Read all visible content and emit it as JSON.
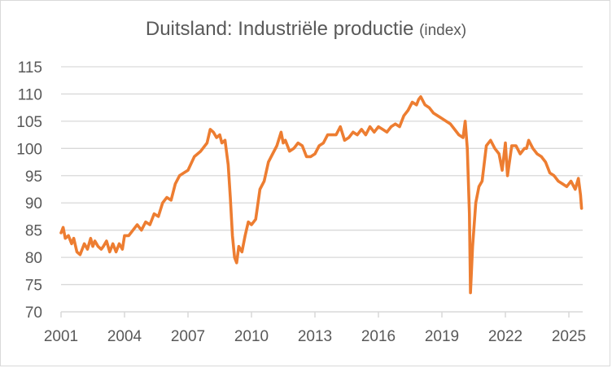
{
  "chart_data": {
    "type": "line",
    "title": "Duitsland: Industriële productie",
    "title_suffix": "(index)",
    "xlabel": "",
    "ylabel": "",
    "ylim": [
      70,
      115
    ],
    "xlim": [
      2001,
      2025.7
    ],
    "grid": true,
    "legend": "none",
    "y_ticks": [
      "70",
      "75",
      "80",
      "85",
      "90",
      "95",
      "100",
      "105",
      "110",
      "115"
    ],
    "x_ticks": [
      "2001",
      "2004",
      "2007",
      "2010",
      "2013",
      "2016",
      "2019",
      "2022",
      "2025"
    ],
    "line_color": "#ED7D31",
    "series": [
      {
        "name": "Industriële productie",
        "x": [
          2001.0,
          2001.1,
          2001.2,
          2001.35,
          2001.5,
          2001.6,
          2001.75,
          2001.9,
          2002.0,
          2002.1,
          2002.25,
          2002.4,
          2002.5,
          2002.6,
          2002.75,
          2002.9,
          2003.0,
          2003.15,
          2003.3,
          2003.45,
          2003.6,
          2003.75,
          2003.9,
          2004.0,
          2004.2,
          2004.4,
          2004.6,
          2004.8,
          2005.0,
          2005.2,
          2005.4,
          2005.6,
          2005.8,
          2006.0,
          2006.2,
          2006.4,
          2006.6,
          2006.8,
          2007.0,
          2007.3,
          2007.6,
          2007.9,
          2008.05,
          2008.2,
          2008.35,
          2008.5,
          2008.6,
          2008.75,
          2008.9,
          2009.0,
          2009.1,
          2009.2,
          2009.3,
          2009.4,
          2009.55,
          2009.7,
          2009.85,
          2010.0,
          2010.2,
          2010.4,
          2010.6,
          2010.8,
          2011.0,
          2011.2,
          2011.4,
          2011.5,
          2011.6,
          2011.8,
          2012.0,
          2012.2,
          2012.4,
          2012.6,
          2012.8,
          2013.0,
          2013.2,
          2013.4,
          2013.6,
          2013.8,
          2014.0,
          2014.2,
          2014.4,
          2014.6,
          2014.8,
          2015.0,
          2015.2,
          2015.4,
          2015.6,
          2015.8,
          2016.0,
          2016.2,
          2016.4,
          2016.6,
          2016.8,
          2017.0,
          2017.2,
          2017.4,
          2017.6,
          2017.8,
          2017.9,
          2018.0,
          2018.2,
          2018.4,
          2018.6,
          2018.8,
          2019.0,
          2019.2,
          2019.4,
          2019.6,
          2019.8,
          2020.0,
          2020.1,
          2020.2,
          2020.3,
          2020.35,
          2020.45,
          2020.6,
          2020.75,
          2020.9,
          2021.1,
          2021.3,
          2021.5,
          2021.7,
          2021.85,
          2022.0,
          2022.1,
          2022.3,
          2022.5,
          2022.7,
          2022.9,
          2023.0,
          2023.1,
          2023.3,
          2023.5,
          2023.7,
          2023.9,
          2024.1,
          2024.3,
          2024.5,
          2024.7,
          2024.9,
          2025.1,
          2025.3,
          2025.45,
          2025.55,
          2025.6
        ],
        "values": [
          84.5,
          85.5,
          83.5,
          84.0,
          82.5,
          83.5,
          81.0,
          80.5,
          81.5,
          82.5,
          81.5,
          83.5,
          82.0,
          83.0,
          82.0,
          81.5,
          82.0,
          83.0,
          81.0,
          82.5,
          81.0,
          82.5,
          81.5,
          84.0,
          84.0,
          85.0,
          86.0,
          85.0,
          86.5,
          86.0,
          88.0,
          87.5,
          90.0,
          91.0,
          90.5,
          93.5,
          95.0,
          95.5,
          96.0,
          98.5,
          99.5,
          101.0,
          103.5,
          103.0,
          102.0,
          102.5,
          101.0,
          101.5,
          97.0,
          91.0,
          84.0,
          80.0,
          79.0,
          82.0,
          81.0,
          84.0,
          86.5,
          86.0,
          87.0,
          92.5,
          94.0,
          97.5,
          99.0,
          100.5,
          103.0,
          101.0,
          101.5,
          99.5,
          100.0,
          101.0,
          100.5,
          98.5,
          98.5,
          99.0,
          100.5,
          101.0,
          102.5,
          102.5,
          102.5,
          104.0,
          101.5,
          102.0,
          103.0,
          102.5,
          103.5,
          102.5,
          104.0,
          103.0,
          104.0,
          103.5,
          103.0,
          104.0,
          104.5,
          104.0,
          106.0,
          107.0,
          108.5,
          108.0,
          109.0,
          109.5,
          108.0,
          107.5,
          106.5,
          106.0,
          105.5,
          105.0,
          104.5,
          103.5,
          102.5,
          102.0,
          105.0,
          100.0,
          88.0,
          73.5,
          82.0,
          90.0,
          93.0,
          94.0,
          100.5,
          101.5,
          100.0,
          99.0,
          96.0,
          101.0,
          95.0,
          100.5,
          100.5,
          99.0,
          100.0,
          100.0,
          101.5,
          100.0,
          99.0,
          98.5,
          97.5,
          95.5,
          95.0,
          94.0,
          93.5,
          93.0,
          94.0,
          92.5,
          94.5,
          91.5,
          89.0
        ]
      }
    ]
  }
}
